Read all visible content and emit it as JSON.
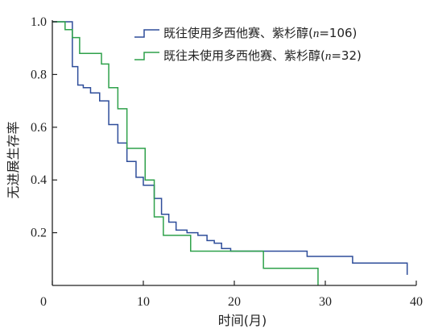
{
  "chart_data": {
    "type": "line",
    "step": true,
    "title": "",
    "xlabel": "时间(月)",
    "ylabel": "无进展生存率",
    "xlim": [
      0,
      40
    ],
    "ylim": [
      0,
      1.0
    ],
    "xticks": [
      0,
      10,
      20,
      30,
      40
    ],
    "yticks": [
      0.2,
      0.4,
      0.6,
      0.8,
      1.0
    ],
    "xtick_labels": [
      "0",
      "10",
      "20",
      "30",
      "40"
    ],
    "ytick_labels": [
      "0.2",
      "0.4",
      "0.6",
      "0.8",
      "1.0"
    ],
    "grid": false,
    "legend_position": "top-right",
    "series": [
      {
        "name": "既往使用多西他赛、紫杉醇(n=106)",
        "name_parts": [
          "既往使用多西他赛、紫杉醇(",
          "n",
          "=106)"
        ],
        "color": "#2e4d9a",
        "x": [
          0,
          2.2,
          2.8,
          3.4,
          4.2,
          5.2,
          6.2,
          7.2,
          8.2,
          9.2,
          10.0,
          11.2,
          12.0,
          12.8,
          13.6,
          14.8,
          16.0,
          17.0,
          17.8,
          18.6,
          19.6,
          21.6,
          28.0,
          33.0,
          39.0
        ],
        "y": [
          1.0,
          0.83,
          0.76,
          0.75,
          0.73,
          0.7,
          0.61,
          0.54,
          0.47,
          0.41,
          0.38,
          0.33,
          0.27,
          0.24,
          0.21,
          0.2,
          0.19,
          0.17,
          0.16,
          0.14,
          0.13,
          0.13,
          0.11,
          0.085,
          0.04
        ]
      },
      {
        "name": "既往未使用多西他赛、紫杉醇(n=32)",
        "name_parts": [
          "既往未使用多西他赛、紫杉醇(",
          "n",
          "=32)"
        ],
        "color": "#2ea14a",
        "x": [
          0,
          1.4,
          2.2,
          3.0,
          5.4,
          6.2,
          7.2,
          8.2,
          10.2,
          11.2,
          12.2,
          15.2,
          23.2,
          29.2
        ],
        "y": [
          1.0,
          0.97,
          0.94,
          0.88,
          0.84,
          0.75,
          0.67,
          0.52,
          0.4,
          0.26,
          0.19,
          0.13,
          0.065,
          0.0
        ]
      }
    ]
  }
}
